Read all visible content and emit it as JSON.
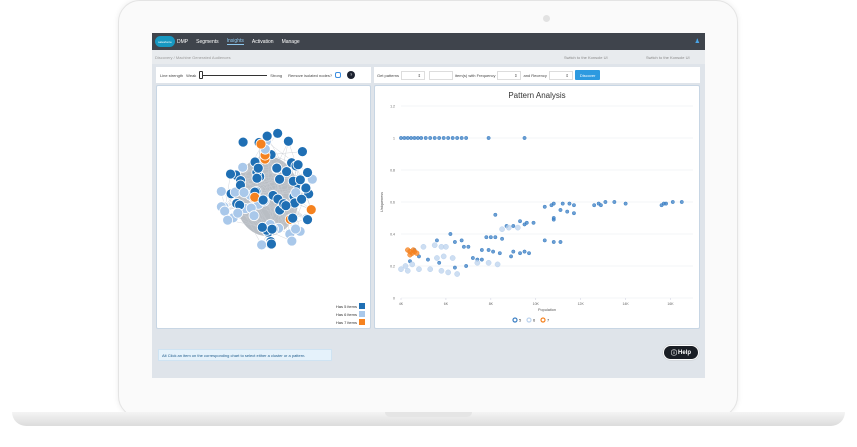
{
  "nav": {
    "logo": "salesforce",
    "product": "DMP",
    "items": [
      "Segments",
      "Insights",
      "Activation",
      "Manage"
    ],
    "active": "Insights",
    "user_icon": "user-icon"
  },
  "breadcrumb": "Discovery / Machine Generated Audiences",
  "switch_links": [
    "Switch to the Konsole UI",
    "Switch to the Konsole UI"
  ],
  "toolbar": {
    "line_strength": "Line strength",
    "weak": "Weak",
    "strong": "Strong",
    "remove_isolated": "Remove isolated nodes?",
    "get_patterns": "Get patterns",
    "items_freq": "item(s) with Frequency",
    "recency": "and Recency",
    "discover": "Discover"
  },
  "network_legend": [
    {
      "label": "Has 5 items",
      "color": "#1f6fb4"
    },
    {
      "label": "Has 6 items",
      "color": "#a9c8ea"
    },
    {
      "label": "Has 7 items",
      "color": "#f5821f"
    }
  ],
  "info": "Alt Click an item on the corresponding chart to select either a cluster or a pattern.",
  "help": "Help",
  "chart_data": {
    "type": "scatter",
    "title": "Pattern Analysis",
    "xlabel": "Population",
    "ylabel": "Uniqueness",
    "xlim": [
      4000,
      17000
    ],
    "ylim": [
      0,
      1.2
    ],
    "xticks": [
      "4K",
      "6K",
      "8K",
      "10K",
      "12K",
      "14K",
      "16K"
    ],
    "yticks": [
      "0",
      "0.2",
      "0.4",
      "0.6",
      "0.8",
      "1",
      "1.2"
    ],
    "grid": "horizontal",
    "legend_position": "bottom",
    "series": [
      {
        "name": "5",
        "color": "#3b7fc4",
        "points": [
          [
            4000,
            1
          ],
          [
            4150,
            1
          ],
          [
            4300,
            1
          ],
          [
            4450,
            1
          ],
          [
            4600,
            1
          ],
          [
            4750,
            1
          ],
          [
            4900,
            1
          ],
          [
            5100,
            1
          ],
          [
            5300,
            1
          ],
          [
            5500,
            1
          ],
          [
            5700,
            1
          ],
          [
            5900,
            1
          ],
          [
            6100,
            1
          ],
          [
            6300,
            1
          ],
          [
            6500,
            1
          ],
          [
            6700,
            1
          ],
          [
            6900,
            1
          ],
          [
            7900,
            1
          ],
          [
            9500,
            1
          ],
          [
            10400,
            0.57
          ],
          [
            10700,
            0.58
          ],
          [
            10800,
            0.59
          ],
          [
            11200,
            0.59
          ],
          [
            11500,
            0.59
          ],
          [
            11700,
            0.58
          ],
          [
            12600,
            0.58
          ],
          [
            12800,
            0.59
          ],
          [
            12900,
            0.58
          ],
          [
            13100,
            0.6
          ],
          [
            13500,
            0.6
          ],
          [
            14000,
            0.59
          ],
          [
            15600,
            0.58
          ],
          [
            15700,
            0.59
          ],
          [
            15800,
            0.59
          ],
          [
            16100,
            0.6
          ],
          [
            16500,
            0.6
          ],
          [
            11100,
            0.55
          ],
          [
            11400,
            0.54
          ],
          [
            11700,
            0.53
          ],
          [
            10800,
            0.5
          ],
          [
            10800,
            0.49
          ],
          [
            8200,
            0.52
          ],
          [
            9300,
            0.48
          ],
          [
            9600,
            0.47
          ],
          [
            9900,
            0.47
          ],
          [
            9500,
            0.46
          ],
          [
            9000,
            0.45
          ],
          [
            8700,
            0.45
          ],
          [
            10400,
            0.36
          ],
          [
            10800,
            0.35
          ],
          [
            11100,
            0.35
          ],
          [
            7800,
            0.38
          ],
          [
            8000,
            0.38
          ],
          [
            8200,
            0.38
          ],
          [
            8500,
            0.37
          ],
          [
            6200,
            0.4
          ],
          [
            5600,
            0.36
          ],
          [
            6700,
            0.36
          ],
          [
            6400,
            0.35
          ],
          [
            6800,
            0.32
          ],
          [
            7000,
            0.32
          ],
          [
            7600,
            0.3
          ],
          [
            7900,
            0.3
          ],
          [
            8100,
            0.29
          ],
          [
            8400,
            0.28
          ],
          [
            9000,
            0.29
          ],
          [
            9300,
            0.28
          ],
          [
            9500,
            0.29
          ],
          [
            9700,
            0.28
          ],
          [
            8900,
            0.26
          ],
          [
            7200,
            0.25
          ],
          [
            7400,
            0.24
          ],
          [
            7600,
            0.24
          ],
          [
            6900,
            0.2
          ],
          [
            6400,
            0.19
          ],
          [
            5700,
            0.22
          ],
          [
            5200,
            0.24
          ],
          [
            4800,
            0.26
          ],
          [
            4600,
            0.3
          ],
          [
            4400,
            0.23
          ]
        ]
      },
      {
        "name": "6",
        "color": "#bcd3ee",
        "points": [
          [
            4000,
            0.18
          ],
          [
            4200,
            0.2
          ],
          [
            4300,
            0.17
          ],
          [
            4500,
            0.21
          ],
          [
            4800,
            0.18
          ],
          [
            5000,
            0.32
          ],
          [
            5300,
            0.18
          ],
          [
            5500,
            0.33
          ],
          [
            5800,
            0.32
          ],
          [
            6000,
            0.32
          ],
          [
            5600,
            0.25
          ],
          [
            5900,
            0.26
          ],
          [
            6300,
            0.25
          ],
          [
            5800,
            0.17
          ],
          [
            6100,
            0.16
          ],
          [
            6500,
            0.15
          ],
          [
            7400,
            0.22
          ],
          [
            7900,
            0.22
          ],
          [
            8300,
            0.21
          ],
          [
            8500,
            0.43
          ],
          [
            8800,
            0.44
          ],
          [
            9200,
            0.44
          ]
        ]
      },
      {
        "name": "7",
        "color": "#f5821f",
        "points": [
          [
            4300,
            0.3
          ],
          [
            4400,
            0.29
          ],
          [
            4500,
            0.28
          ],
          [
            4600,
            0.29
          ],
          [
            4700,
            0.28
          ],
          [
            4400,
            0.27
          ],
          [
            4550,
            0.3
          ]
        ]
      }
    ]
  }
}
